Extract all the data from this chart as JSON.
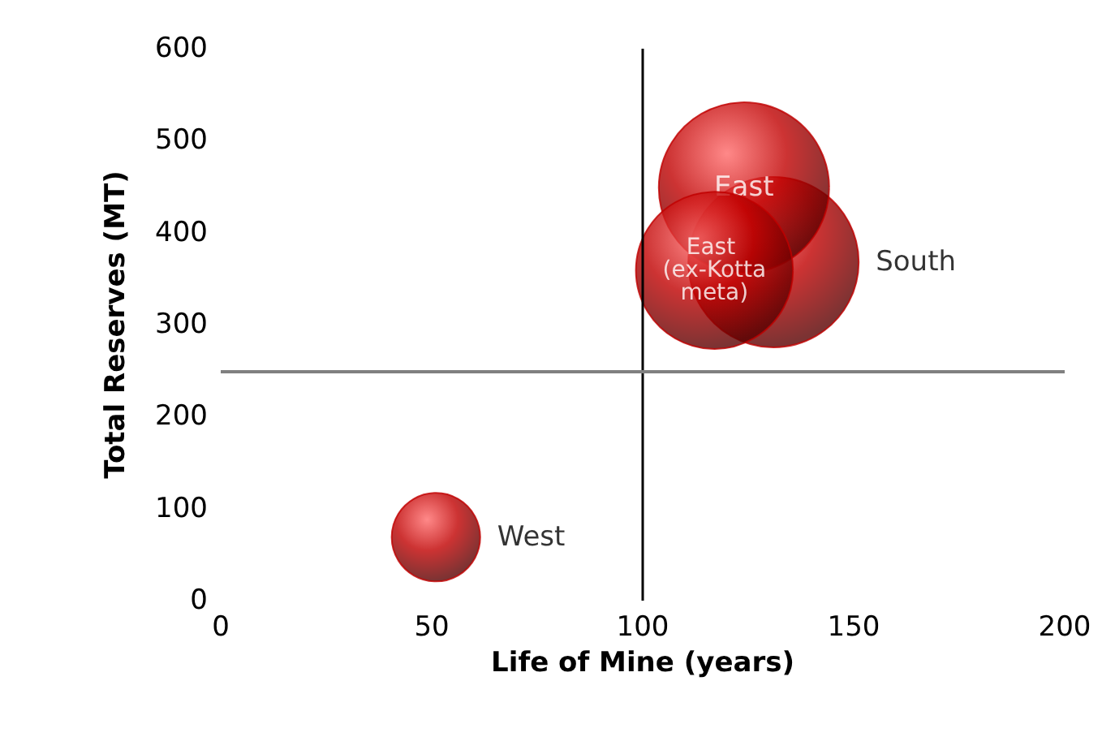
{
  "chart_data": {
    "type": "bubble",
    "xlabel": "Life of Mine (years)",
    "ylabel": "Total Reserves (MT)",
    "xlim": [
      0,
      200
    ],
    "xticks": [
      0,
      50,
      100,
      150,
      200
    ],
    "ylim": [
      0,
      600
    ],
    "yticks": [
      0,
      100,
      200,
      300,
      400,
      500,
      600
    ],
    "grid": false,
    "legend": false,
    "series": [
      {
        "name": "South",
        "color": "#c00000",
        "x": [
          131
        ],
        "values": [
          368
        ],
        "sizes": [
          1
        ]
      },
      {
        "name": "East",
        "color": "#c00000",
        "x": [
          124
        ],
        "values": [
          449
        ],
        "sizes": [
          1
        ]
      },
      {
        "name": "East (ex-Kottameta)",
        "color": "#c00000",
        "x": [
          117
        ],
        "values": [
          359
        ],
        "sizes": [
          0.85
        ]
      },
      {
        "name": "West",
        "color": "#c00000",
        "x": [
          51
        ],
        "values": [
          69
        ],
        "sizes": [
          0.27
        ]
      }
    ],
    "ref_lines": [
      {
        "axis": "x",
        "value": 100,
        "color": "#000000"
      },
      {
        "axis": "y",
        "value": 250,
        "color": "#808080"
      }
    ]
  }
}
